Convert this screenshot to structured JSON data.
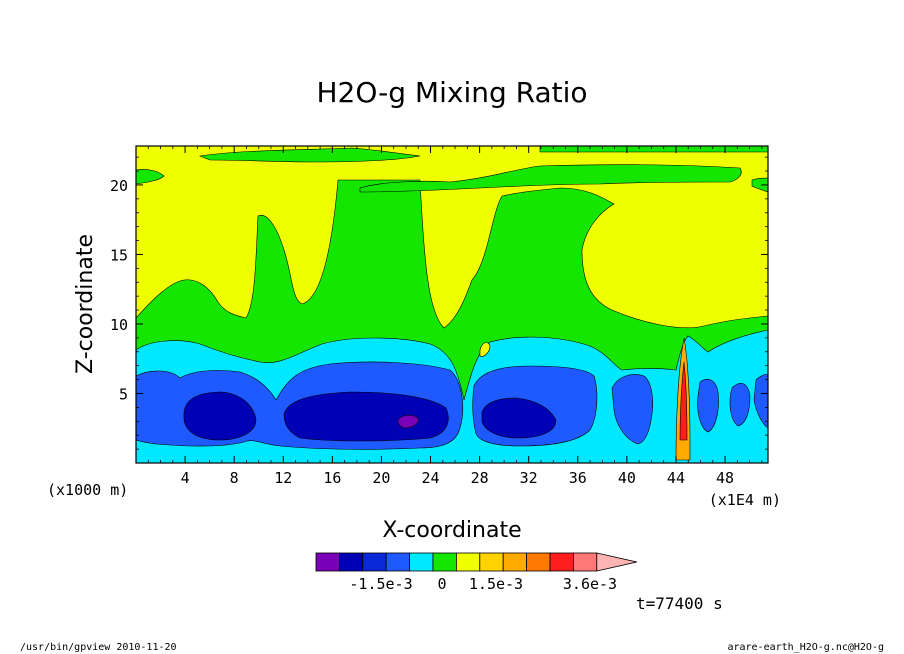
{
  "chart_data": {
    "type": "heatmap",
    "title": "H2O-g Mixing Ratio",
    "xlabel": "X-coordinate",
    "ylabel": "Z-coordinate",
    "x_unit_left": "(x1000 m)",
    "x_unit_right": "(x1E4 m)",
    "x_ticks": [
      4,
      8,
      12,
      16,
      20,
      24,
      28,
      32,
      36,
      40,
      44,
      48
    ],
    "y_ticks": [
      5,
      10,
      15,
      20
    ],
    "xlim": [
      0,
      51.5
    ],
    "ylim": [
      0,
      22.8
    ],
    "colorbar": {
      "colors": [
        "#7a00b8",
        "#0000b4",
        "#0a28d8",
        "#1e5aff",
        "#00e8ff",
        "#14e600",
        "#f0ff00",
        "#ffd200",
        "#ffaa00",
        "#ff7800",
        "#ff1e1e",
        "#ff7878",
        "#ffb4b4"
      ],
      "labels": [
        "-1.5e-3",
        "0",
        "1.5e-3",
        "3.6e-3"
      ]
    },
    "time_label": "t=77400 s",
    "footer_left": "/usr/bin/gpview  2010-11-20",
    "footer_right": "arare-earth_H2O-g.nc@H2O-g",
    "level_colors": {
      "yellow": "#f0ff00",
      "green": "#14e600",
      "cyan": "#00e8ff",
      "blue": "#1e5aff",
      "navy": "#0000b4",
      "purple": "#7a00b8",
      "orange": "#ffaa00",
      "red": "#ff1e1e"
    }
  }
}
